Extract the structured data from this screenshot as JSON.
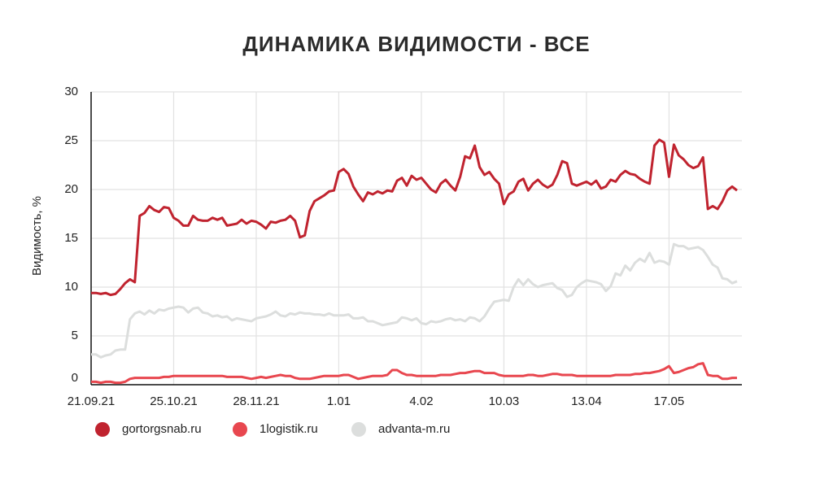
{
  "chart_data": {
    "type": "line",
    "title": "ДИНАМИКА ВИДИМОСТИ - ВСЕ",
    "y_label": "Видимость, %",
    "categories": [
      "21.09.21",
      null,
      null,
      null,
      null,
      null,
      null,
      null,
      null,
      null,
      null,
      null,
      null,
      null,
      null,
      null,
      null,
      "25.10.21",
      null,
      null,
      null,
      null,
      null,
      null,
      null,
      null,
      null,
      null,
      null,
      null,
      null,
      null,
      null,
      null,
      "28.11.21",
      null,
      null,
      null,
      null,
      null,
      null,
      null,
      null,
      null,
      null,
      null,
      null,
      null,
      null,
      null,
      null,
      "1.01",
      null,
      null,
      null,
      null,
      null,
      null,
      null,
      null,
      null,
      null,
      null,
      null,
      null,
      null,
      null,
      null,
      "4.02",
      null,
      null,
      null,
      null,
      null,
      null,
      null,
      null,
      null,
      null,
      null,
      null,
      null,
      null,
      null,
      null,
      "10.03",
      null,
      null,
      null,
      null,
      null,
      null,
      null,
      null,
      null,
      null,
      null,
      null,
      null,
      null,
      null,
      null,
      "13.04",
      null,
      null,
      null,
      null,
      null,
      null,
      null,
      null,
      null,
      null,
      null,
      null,
      null,
      null,
      null,
      null,
      "17.05",
      null,
      null,
      null,
      null,
      null,
      null,
      null,
      null,
      null,
      null,
      null,
      null,
      null,
      null
    ],
    "series": [
      {
        "name": "gortorgsnab.ru",
        "color": "#c0232f",
        "values": [
          9.4,
          9.4,
          9.3,
          9.4,
          9.2,
          9.3,
          9.8,
          10.4,
          10.8,
          10.5,
          17.3,
          17.6,
          18.3,
          17.9,
          17.7,
          18.2,
          18.1,
          17.1,
          16.8,
          16.3,
          16.3,
          17.3,
          16.9,
          16.8,
          16.8,
          17.1,
          16.9,
          17.1,
          16.3,
          16.4,
          16.5,
          16.9,
          16.5,
          16.8,
          16.7,
          16.4,
          16.0,
          16.7,
          16.6,
          16.8,
          16.9,
          17.3,
          16.8,
          15.1,
          15.3,
          17.8,
          18.8,
          19.1,
          19.4,
          19.8,
          19.9,
          21.8,
          22.1,
          21.6,
          20.3,
          19.5,
          18.8,
          19.7,
          19.5,
          19.8,
          19.6,
          19.9,
          19.8,
          20.9,
          21.2,
          20.4,
          21.4,
          21.0,
          21.2,
          20.6,
          20.0,
          19.7,
          20.6,
          21.0,
          20.4,
          19.9,
          21.3,
          23.4,
          23.2,
          24.5,
          22.3,
          21.5,
          21.8,
          21.1,
          20.6,
          18.5,
          19.5,
          19.8,
          20.8,
          21.1,
          19.9,
          20.6,
          21.0,
          20.5,
          20.2,
          20.5,
          21.5,
          22.9,
          22.7,
          20.6,
          20.4,
          20.6,
          20.8,
          20.5,
          20.9,
          20.1,
          20.3,
          21.0,
          20.8,
          21.5,
          21.9,
          21.6,
          21.5,
          21.1,
          20.8,
          20.6,
          24.5,
          25.1,
          24.8,
          21.3,
          24.6,
          23.5,
          23.1,
          22.5,
          22.2,
          22.4,
          23.3,
          18.0,
          18.3,
          18.0,
          18.8,
          19.9,
          20.3,
          19.9
        ]
      },
      {
        "name": "1logistik.ru",
        "color": "#e8474f",
        "values": [
          0.3,
          0.3,
          0.2,
          0.3,
          0.3,
          0.2,
          0.2,
          0.3,
          0.6,
          0.7,
          0.7,
          0.7,
          0.7,
          0.7,
          0.7,
          0.8,
          0.8,
          0.9,
          0.9,
          0.9,
          0.9,
          0.9,
          0.9,
          0.9,
          0.9,
          0.9,
          0.9,
          0.9,
          0.8,
          0.8,
          0.8,
          0.8,
          0.7,
          0.6,
          0.7,
          0.8,
          0.7,
          0.8,
          0.9,
          1.0,
          0.9,
          0.9,
          0.7,
          0.6,
          0.6,
          0.6,
          0.7,
          0.8,
          0.9,
          0.9,
          0.9,
          0.9,
          1.0,
          1.0,
          0.8,
          0.6,
          0.7,
          0.8,
          0.9,
          0.9,
          0.9,
          1.0,
          1.5,
          1.5,
          1.2,
          1.0,
          1.0,
          0.9,
          0.9,
          0.9,
          0.9,
          0.9,
          1.0,
          1.0,
          1.0,
          1.1,
          1.2,
          1.2,
          1.3,
          1.4,
          1.4,
          1.2,
          1.2,
          1.2,
          1.0,
          0.9,
          0.9,
          0.9,
          0.9,
          0.9,
          1.0,
          1.0,
          0.9,
          0.9,
          1.0,
          1.1,
          1.1,
          1.0,
          1.0,
          1.0,
          0.9,
          0.9,
          0.9,
          0.9,
          0.9,
          0.9,
          0.9,
          0.9,
          1.0,
          1.0,
          1.0,
          1.0,
          1.1,
          1.1,
          1.2,
          1.2,
          1.3,
          1.4,
          1.6,
          1.9,
          1.2,
          1.3,
          1.5,
          1.7,
          1.8,
          2.1,
          2.2,
          1.0,
          0.9,
          0.9,
          0.6,
          0.6,
          0.7,
          0.7
        ]
      },
      {
        "name": "advanta-m.ru",
        "color": "#dcdedd",
        "values": [
          3.1,
          3.1,
          2.8,
          3.0,
          3.1,
          3.5,
          3.6,
          3.6,
          6.7,
          7.3,
          7.5,
          7.2,
          7.6,
          7.3,
          7.7,
          7.6,
          7.8,
          7.9,
          8.0,
          7.9,
          7.4,
          7.8,
          7.9,
          7.4,
          7.3,
          7.0,
          7.1,
          6.9,
          7.0,
          6.6,
          6.8,
          6.7,
          6.6,
          6.5,
          6.8,
          6.9,
          7.0,
          7.2,
          7.5,
          7.1,
          7.0,
          7.3,
          7.2,
          7.4,
          7.3,
          7.3,
          7.2,
          7.2,
          7.1,
          7.3,
          7.1,
          7.1,
          7.1,
          7.2,
          6.8,
          6.8,
          6.9,
          6.5,
          6.5,
          6.3,
          6.1,
          6.2,
          6.3,
          6.4,
          6.9,
          6.8,
          6.6,
          6.8,
          6.3,
          6.2,
          6.5,
          6.4,
          6.5,
          6.7,
          6.8,
          6.6,
          6.7,
          6.5,
          6.9,
          6.8,
          6.5,
          7.0,
          7.8,
          8.5,
          8.6,
          8.7,
          8.6,
          10.0,
          10.8,
          10.2,
          10.8,
          10.3,
          10.0,
          10.2,
          10.3,
          10.4,
          9.9,
          9.7,
          9.0,
          9.2,
          10.0,
          10.4,
          10.7,
          10.6,
          10.5,
          10.3,
          9.6,
          10.1,
          11.4,
          11.2,
          12.2,
          11.7,
          12.5,
          12.9,
          12.6,
          13.5,
          12.5,
          12.7,
          12.6,
          12.3,
          14.4,
          14.2,
          14.2,
          13.9,
          14.0,
          14.1,
          13.8,
          13.1,
          12.3,
          12.0,
          10.9,
          10.8,
          10.4,
          10.6
        ]
      }
    ],
    "ylim": [
      0,
      30
    ],
    "yticks": [
      0,
      5,
      10,
      15,
      20,
      25,
      30
    ],
    "grid": true
  }
}
